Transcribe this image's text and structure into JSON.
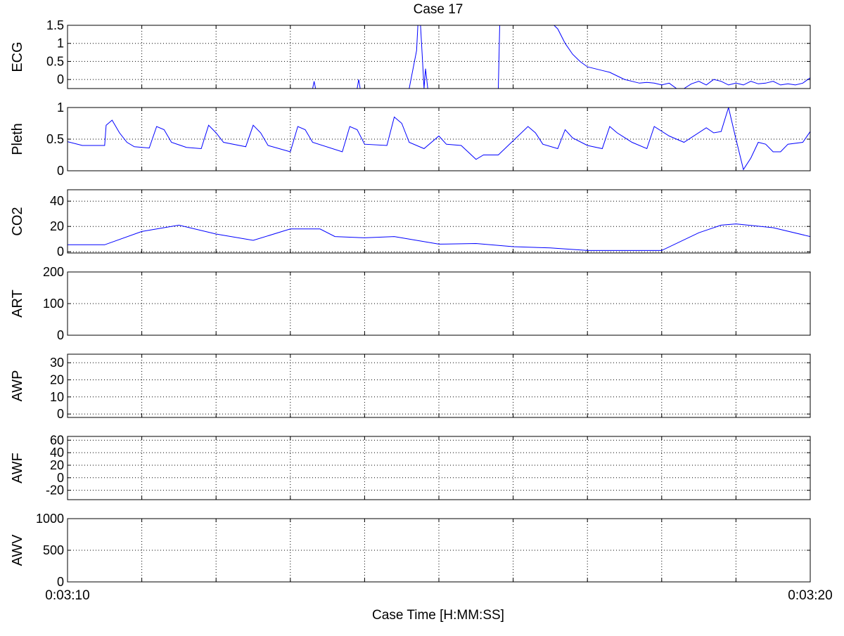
{
  "colors": {
    "trace": "#0000ff",
    "axis": "#000000",
    "grid": "#000000",
    "background": "#ffffff"
  },
  "chart_data": {
    "type": "line",
    "title": "Case 17",
    "xlabel": "Case Time [H:MM:SS]",
    "x_tick_labels": [
      "0:03:10",
      "0:03:20"
    ],
    "xlim": [
      0,
      10
    ],
    "x_units": "seconds after 0:03:10",
    "x_gridlines": [
      1,
      2,
      3,
      4,
      5,
      6,
      7,
      8,
      9
    ],
    "grid": true,
    "panels": [
      {
        "ylabel": "ECG",
        "ylim": [
          -0.25,
          1.5
        ],
        "yticks": [
          0,
          0.5,
          1,
          1.5
        ],
        "ytick_labels": [
          "0",
          "0.5",
          "1",
          "1.5"
        ],
        "series": {
          "x": [
            0,
            3.3,
            3.32,
            3.34,
            3.4,
            3.9,
            3.92,
            3.94,
            4.2,
            4.22,
            4.24,
            4.35,
            4.6,
            4.7,
            4.72,
            4.75,
            4.78,
            4.8,
            4.82,
            4.85,
            4.88,
            5.0,
            5.1,
            5.2,
            5.3,
            5.5,
            5.8,
            5.82,
            5.85,
            6.5,
            6.6,
            6.7,
            6.8,
            6.9,
            7.0,
            7.1,
            7.2,
            7.3,
            7.4,
            7.5,
            7.6,
            7.7,
            7.8,
            7.9,
            8.0,
            8.1,
            8.2,
            8.3,
            8.4,
            8.5,
            8.6,
            8.7,
            8.8,
            8.9,
            9.0,
            9.1,
            9.2,
            9.3,
            9.4,
            9.5,
            9.6,
            9.7,
            9.8,
            9.9,
            10.0
          ],
          "y": [
            -0.25,
            -0.25,
            -0.05,
            -0.25,
            -0.25,
            -0.25,
            0.0,
            -0.25,
            -0.25,
            -0.25,
            -0.25,
            -0.25,
            -0.25,
            0.8,
            1.6,
            1.6,
            0.5,
            -0.25,
            0.3,
            -0.25,
            -0.25,
            -0.25,
            -0.25,
            -0.25,
            -0.25,
            -0.25,
            -0.25,
            1.6,
            1.6,
            1.6,
            1.4,
            1.0,
            0.7,
            0.5,
            0.35,
            0.3,
            0.25,
            0.2,
            0.1,
            0.0,
            -0.05,
            -0.1,
            -0.08,
            -0.1,
            -0.15,
            -0.1,
            -0.25,
            -0.25,
            -0.12,
            -0.05,
            -0.15,
            0.0,
            -0.05,
            -0.15,
            -0.1,
            -0.15,
            -0.05,
            -0.12,
            -0.1,
            -0.05,
            -0.15,
            -0.12,
            -0.15,
            -0.1,
            0.05
          ]
        }
      },
      {
        "ylabel": "Pleth",
        "ylim": [
          0,
          1
        ],
        "yticks": [
          0,
          0.5,
          1
        ],
        "ytick_labels": [
          "0",
          "0.5",
          "1"
        ],
        "series": {
          "x": [
            0,
            0.2,
            0.5,
            0.52,
            0.6,
            0.7,
            0.8,
            0.9,
            1.1,
            1.2,
            1.3,
            1.4,
            1.6,
            1.8,
            1.9,
            2.0,
            2.1,
            2.4,
            2.5,
            2.6,
            2.7,
            3.0,
            3.1,
            3.2,
            3.3,
            3.7,
            3.8,
            3.9,
            4.0,
            4.3,
            4.4,
            4.5,
            4.6,
            4.8,
            5.0,
            5.1,
            5.3,
            5.5,
            5.6,
            5.8,
            6.2,
            6.3,
            6.4,
            6.6,
            6.7,
            6.8,
            7.0,
            7.2,
            7.3,
            7.4,
            7.6,
            7.8,
            7.9,
            8.1,
            8.3,
            8.6,
            8.7,
            8.8,
            8.9,
            9.0,
            9.1,
            9.2,
            9.3,
            9.4,
            9.5,
            9.6,
            9.7,
            9.9,
            10.0
          ],
          "y": [
            0.46,
            0.4,
            0.4,
            0.72,
            0.8,
            0.6,
            0.45,
            0.38,
            0.36,
            0.7,
            0.65,
            0.45,
            0.37,
            0.35,
            0.72,
            0.6,
            0.45,
            0.38,
            0.72,
            0.6,
            0.4,
            0.3,
            0.7,
            0.65,
            0.45,
            0.3,
            0.7,
            0.65,
            0.42,
            0.4,
            0.85,
            0.75,
            0.45,
            0.35,
            0.55,
            0.42,
            0.4,
            0.18,
            0.25,
            0.25,
            0.7,
            0.6,
            0.42,
            0.35,
            0.65,
            0.52,
            0.4,
            0.35,
            0.7,
            0.6,
            0.45,
            0.35,
            0.7,
            0.55,
            0.45,
            0.68,
            0.6,
            0.62,
            1.0,
            0.5,
            0.02,
            0.2,
            0.45,
            0.42,
            0.3,
            0.3,
            0.42,
            0.45,
            0.62
          ]
        }
      },
      {
        "ylabel": "CO2",
        "ylim": [
          -1,
          49
        ],
        "yticks": [
          0,
          20,
          40
        ],
        "ytick_labels": [
          "0",
          "20",
          "40"
        ],
        "series": {
          "x": [
            0,
            0.5,
            1.0,
            1.5,
            2.0,
            2.5,
            3.0,
            3.4,
            3.6,
            4.0,
            4.4,
            5.0,
            5.5,
            6.0,
            6.5,
            7.0,
            7.5,
            8.0,
            8.5,
            8.8,
            9.0,
            9.5,
            10.0
          ],
          "y": [
            5.5,
            5.5,
            16,
            21,
            14,
            9,
            18,
            18,
            12,
            11,
            12,
            6,
            6.5,
            4,
            3,
            1,
            1,
            1,
            15,
            21,
            22,
            19,
            12
          ]
        }
      },
      {
        "ylabel": "ART",
        "ylim": [
          0,
          200
        ],
        "yticks": [
          0,
          100,
          200
        ],
        "ytick_labels": [
          "0",
          "100",
          "200"
        ],
        "series": {
          "x": [],
          "y": []
        }
      },
      {
        "ylabel": "AWP",
        "ylim": [
          -2,
          35
        ],
        "yticks": [
          0,
          10,
          20,
          30
        ],
        "ytick_labels": [
          "0",
          "10",
          "20",
          "30"
        ],
        "series": {
          "x": [],
          "y": []
        }
      },
      {
        "ylabel": "AWF",
        "ylim": [
          -35,
          66
        ],
        "yticks": [
          -20,
          0,
          20,
          40,
          60
        ],
        "ytick_labels": [
          "-20",
          "0",
          "20",
          "40",
          "60"
        ],
        "series": {
          "x": [],
          "y": []
        }
      },
      {
        "ylabel": "AWV",
        "ylim": [
          0,
          1000
        ],
        "yticks": [
          0,
          500,
          1000
        ],
        "ytick_labels": [
          "0",
          "500",
          "1000"
        ],
        "series": {
          "x": [],
          "y": []
        }
      }
    ]
  }
}
